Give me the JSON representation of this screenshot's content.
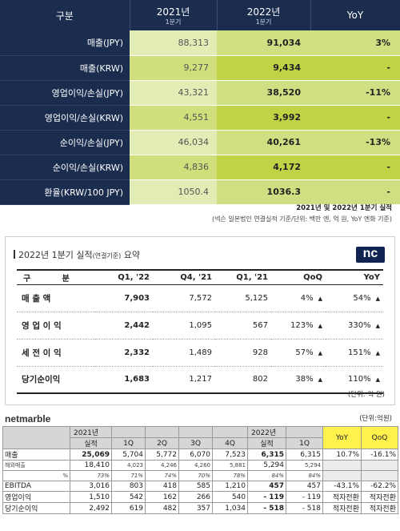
{
  "nexon": {
    "headers": {
      "category": "구분",
      "y2021": "2021년",
      "y2021_sub": "1분기",
      "y2022": "2022년",
      "y2022_sub": "1분기",
      "yoy": "YoY"
    },
    "rows": [
      {
        "label": "매출(JPY)",
        "v2021": "88,313",
        "v2022": "91,034",
        "yoy": "3%"
      },
      {
        "label": "매출(KRW)",
        "v2021": "9,277",
        "v2022": "9,434",
        "yoy": "-"
      },
      {
        "label": "영업이익/손실(JPY)",
        "v2021": "43,321",
        "v2022": "38,520",
        "yoy": "-11%"
      },
      {
        "label": "영업이익/손실(KRW)",
        "v2021": "4,551",
        "v2022": "3,992",
        "yoy": "-"
      },
      {
        "label": "순이익/손실(JPY)",
        "v2021": "46,034",
        "v2022": "40,261",
        "yoy": "-13%"
      },
      {
        "label": "순이익/손실(KRW)",
        "v2021": "4,836",
        "v2022": "4,172",
        "yoy": "-"
      },
      {
        "label": "환율(KRW/100 JPY)",
        "v2021": "1050.4",
        "v2022": "1036.3",
        "yoy": "-"
      }
    ],
    "note_title": "2021년 및 2022년 1분기 실적",
    "note_sub": "(넥슨 일본법인 연결실적 기준/단위: 백만 엔, 억 원, YoY 엔화 기준)"
  },
  "nc": {
    "title": "2022년 1분기 실적",
    "title_small": "(연결기준)",
    "title_suffix": " 요약",
    "logo": "nc",
    "columns": [
      "구 분",
      "Q1, '22",
      "Q4, '21",
      "Q1, '21",
      "QoQ",
      "YoY"
    ],
    "rows": [
      {
        "label": "매 출 액",
        "q122": "7,903",
        "q421": "7,572",
        "q121": "5,125",
        "qoq": "4%",
        "yoy": "54%"
      },
      {
        "label": "영 업 이 익",
        "q122": "2,442",
        "q421": "1,095",
        "q121": "567",
        "qoq": "123%",
        "yoy": "330%"
      },
      {
        "label": "세 전 이 익",
        "q122": "2,332",
        "q421": "1,489",
        "q121": "928",
        "qoq": "57%",
        "yoy": "151%"
      },
      {
        "label": "당기순이익",
        "q122": "1,683",
        "q421": "1,217",
        "q121": "802",
        "qoq": "38%",
        "yoy": "110%"
      }
    ],
    "arrow": "▲",
    "unit": "(단위: 억 원)"
  },
  "netmarble": {
    "logo": "netmarble",
    "unit": "(단위:억원)",
    "header": {
      "y2021": "2021년",
      "y2022": "2022년",
      "actual": "실적",
      "q1": "1Q",
      "q2": "2Q",
      "q3": "3Q",
      "q4": "4Q",
      "yoy": "YoY",
      "qoq": "QoQ"
    },
    "rows": {
      "sales": {
        "label": "매출",
        "v": [
          "25,069",
          "5,704",
          "5,772",
          "6,070",
          "7,523",
          "6,315",
          "6,315",
          "10.7%",
          "-16.1%"
        ]
      },
      "overseas": {
        "label": "해외매출",
        "v": [
          "18,410",
          "4,023",
          "4,246",
          "4,260",
          "5,881",
          "5,294",
          "5,294"
        ]
      },
      "overseas_pct": {
        "label": "%",
        "v": [
          "73%",
          "71%",
          "74%",
          "70%",
          "78%",
          "84%",
          "84%"
        ]
      },
      "ebitda": {
        "label": "EBITDA",
        "v": [
          "3,016",
          "803",
          "418",
          "585",
          "1,210",
          "457",
          "457",
          "-43.1%",
          "-62.2%"
        ]
      },
      "op": {
        "label": "영업이익",
        "v": [
          "1,510",
          "542",
          "162",
          "266",
          "540",
          "- 119",
          "- 119",
          "적자전환",
          "적자전환"
        ]
      },
      "net": {
        "label": "당기순이익",
        "v": [
          "2,492",
          "619",
          "482",
          "357",
          "1,034",
          "- 518",
          "- 518",
          "적자전환",
          "적자전환"
        ]
      }
    }
  }
}
